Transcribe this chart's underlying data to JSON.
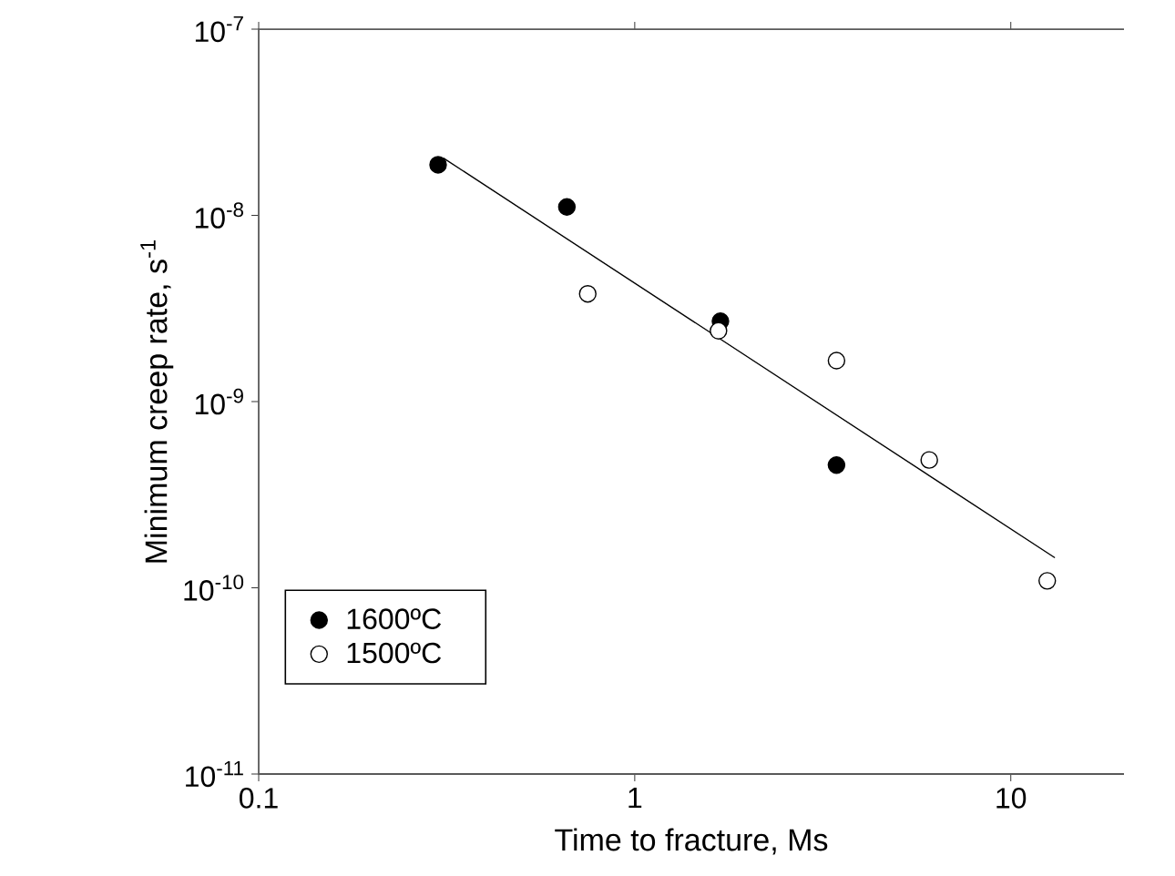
{
  "chart_data": {
    "type": "scatter",
    "xlabel": "Time to fracture, Ms",
    "ylabel": "Minimum creep rate, s$^{-1}$",
    "log": "xy",
    "xlim": [
      0.1,
      20
    ],
    "ylim": [
      1e-11,
      1e-07
    ],
    "xticks": [
      0.1,
      1,
      10
    ],
    "yticks": [
      {
        "value": 1e-11,
        "label": "10$^{-11}$"
      },
      {
        "value": 1e-10,
        "label": "10$^{-10}$"
      },
      {
        "value": 1e-09,
        "label": "10$^{-9}$"
      },
      {
        "value": 1e-08,
        "label": "10$^{-8}$"
      },
      {
        "value": 1e-07,
        "label": "10$^{-7}$"
      }
    ],
    "legend": "bottom left",
    "grid": false,
    "series": [
      {
        "name": "1600ºC",
        "marker": "circle",
        "color": "#000000",
        "x": [
          0.3,
          0.66,
          1.69,
          3.44
        ],
        "values": [
          1.87e-08,
          1.11e-08,
          2.7e-09,
          4.56e-10
        ]
      },
      {
        "name": "1500ºC",
        "marker": "circle",
        "color": "#ffffff",
        "x": [
          0.75,
          1.67,
          3.44,
          6.07,
          12.5
        ],
        "values": [
          3.79e-09,
          2.4e-09,
          1.66e-09,
          4.86e-10,
          1.09e-10
        ]
      },
      {
        "type": "line",
        "marker": "none",
        "color": "#000000",
        "x": [
          0.31,
          13.1
        ],
        "values": [
          2.03e-08,
          1.45e-10
        ]
      }
    ]
  }
}
